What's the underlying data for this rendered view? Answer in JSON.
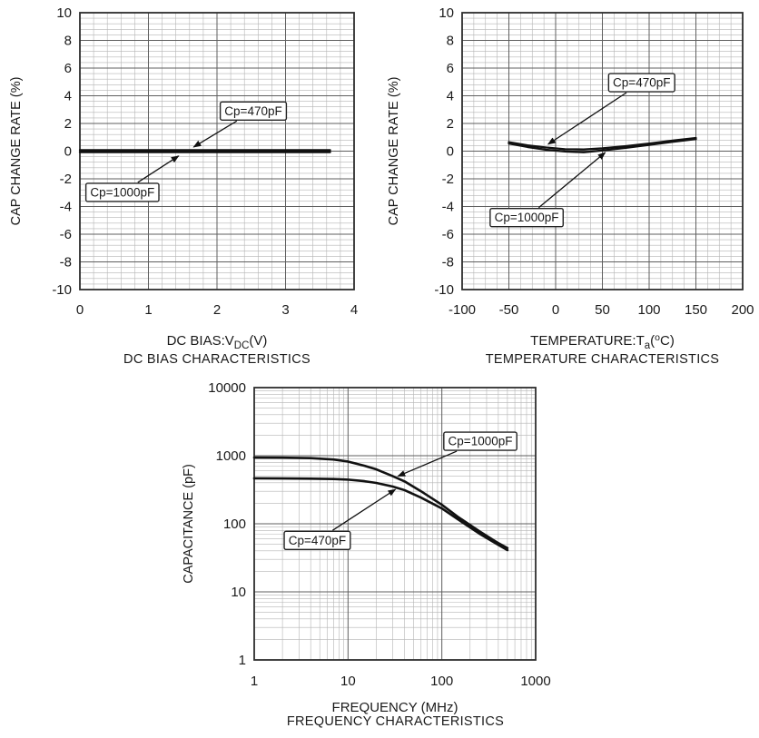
{
  "page": {
    "background": "#ffffff",
    "text_color": "#1a1a1a"
  },
  "styles": {
    "grid_minor": "#b5b5b5",
    "grid_major": "#5f5f5f",
    "plot_border": "#2e2e2e",
    "curve_color": "#111111",
    "annotation_fill": "#ffffff",
    "annotation_border": "#222222"
  },
  "chart_data": [
    {
      "id": "dc-bias",
      "type": "line",
      "title": "DC BIAS CHARACTERISTICS",
      "ylabel": "CAP CHANGE RATE (%)",
      "xlabel_parts": [
        {
          "t": "DC BIAS:V"
        },
        {
          "t": "DC",
          "style": "sub"
        },
        {
          "t": "(V)"
        }
      ],
      "xscale": "linear",
      "yscale": "linear",
      "xlim": [
        0,
        4
      ],
      "ylim": [
        -10,
        10
      ],
      "grid": true,
      "xticks": {
        "values": [
          0,
          1,
          2,
          3,
          4
        ],
        "labels": [
          "0",
          "1",
          "2",
          "3",
          "4"
        ]
      },
      "yticks": {
        "values": [
          10,
          8,
          6,
          4,
          2,
          0,
          -2,
          -4,
          -6,
          -8,
          -10
        ],
        "labels": [
          "10",
          "8",
          "6",
          "4",
          "2",
          "0",
          "-2",
          "-4",
          "-6",
          "-8",
          "-10"
        ]
      },
      "x_minor_step": 0.2,
      "y_minor_step": 0.4,
      "series": [
        {
          "name": "Cp=470pF",
          "points": [
            [
              0,
              0.07
            ],
            [
              3.65,
              0.07
            ]
          ]
        },
        {
          "name": "Cp=1000pF",
          "points": [
            [
              0,
              -0.07
            ],
            [
              3.65,
              -0.07
            ]
          ]
        }
      ],
      "annotations": [
        {
          "label": "Cp=470pF",
          "box": [
            2.53,
            2.9
          ],
          "target": [
            1.66,
            0.3
          ]
        },
        {
          "label": "Cp=1000pF",
          "box": [
            0.62,
            -2.98
          ],
          "target": [
            1.44,
            -0.35
          ]
        }
      ]
    },
    {
      "id": "temperature",
      "type": "line",
      "title": "TEMPERATURE CHARACTERISTICS",
      "ylabel": "CAP CHANGE RATE (%)",
      "xlabel_parts": [
        {
          "t": "TEMPERATURE:T"
        },
        {
          "t": "a",
          "style": "sub"
        },
        {
          "t": "("
        },
        {
          "t": "o",
          "style": "sup"
        },
        {
          "t": "C)"
        }
      ],
      "xscale": "linear",
      "yscale": "linear",
      "xlim": [
        -100,
        200
      ],
      "ylim": [
        -10,
        10
      ],
      "grid": true,
      "xticks": {
        "values": [
          -100,
          -50,
          0,
          50,
          100,
          150,
          200
        ],
        "labels": [
          "-100",
          "-50",
          "0",
          "50",
          "100",
          "150",
          "200"
        ]
      },
      "yticks": {
        "values": [
          10,
          8,
          6,
          4,
          2,
          0,
          -2,
          -4,
          -6,
          -8,
          -10
        ],
        "labels": [
          "10",
          "8",
          "6",
          "4",
          "2",
          "0",
          "-2",
          "-4",
          "-6",
          "-8",
          "-10"
        ]
      },
      "x_minor_step": 12.5,
      "y_minor_step": 0.4,
      "series": [
        {
          "name": "Cp=470pF",
          "points": [
            [
              -50,
              0.65
            ],
            [
              -30,
              0.42
            ],
            [
              -10,
              0.26
            ],
            [
              10,
              0.14
            ],
            [
              30,
              0.12
            ],
            [
              50,
              0.2
            ],
            [
              75,
              0.36
            ],
            [
              100,
              0.55
            ],
            [
              125,
              0.76
            ],
            [
              150,
              0.95
            ]
          ]
        },
        {
          "name": "Cp=1000pF",
          "points": [
            [
              -50,
              0.55
            ],
            [
              -30,
              0.3
            ],
            [
              -10,
              0.1
            ],
            [
              10,
              -0.02
            ],
            [
              30,
              -0.08
            ],
            [
              50,
              0.05
            ],
            [
              75,
              0.24
            ],
            [
              100,
              0.45
            ],
            [
              125,
              0.67
            ],
            [
              150,
              0.87
            ]
          ]
        }
      ],
      "annotations": [
        {
          "label": "Cp=470pF",
          "box": [
            92,
            4.95
          ],
          "target": [
            -8,
            0.5
          ]
        },
        {
          "label": "Cp=1000pF",
          "box": [
            -31,
            -4.8
          ],
          "target": [
            53,
            -0.1
          ]
        }
      ]
    },
    {
      "id": "frequency",
      "type": "line",
      "title": "FREQUENCY CHARACTERISTICS",
      "ylabel": "CAPACITANCE (pF)",
      "xlabel_parts": [
        {
          "t": "FREQUENCY (MHz)"
        }
      ],
      "xscale": "log",
      "yscale": "log",
      "xlim": [
        1,
        1000
      ],
      "ylim": [
        1,
        10000
      ],
      "grid": true,
      "line_width": 2.6,
      "xticks": {
        "values": [
          1,
          10,
          100,
          1000
        ],
        "labels": [
          "1",
          "10",
          "100",
          "1000"
        ]
      },
      "yticks": {
        "values": [
          1,
          10,
          100,
          1000,
          10000
        ],
        "labels": [
          "1",
          "10",
          "100",
          "1000",
          "10000"
        ]
      },
      "series": [
        {
          "name": "Cp=1000pF",
          "points": [
            [
              1,
              940
            ],
            [
              2,
              935
            ],
            [
              4,
              920
            ],
            [
              7,
              880
            ],
            [
              10,
              820
            ],
            [
              15,
              710
            ],
            [
              20,
              630
            ],
            [
              30,
              500
            ],
            [
              40,
              420
            ],
            [
              60,
              300
            ],
            [
              100,
              190
            ],
            [
              150,
              125
            ],
            [
              250,
              78
            ],
            [
              400,
              52
            ],
            [
              500,
              44
            ]
          ]
        },
        {
          "name": "Cp=470pF",
          "points": [
            [
              1,
              465
            ],
            [
              2,
              463
            ],
            [
              4,
              460
            ],
            [
              7,
              455
            ],
            [
              10,
              445
            ],
            [
              15,
              422
            ],
            [
              20,
              398
            ],
            [
              30,
              352
            ],
            [
              40,
              312
            ],
            [
              60,
              242
            ],
            [
              100,
              168
            ],
            [
              150,
              115
            ],
            [
              250,
              72
            ],
            [
              400,
              49
            ],
            [
              500,
              41
            ]
          ]
        }
      ],
      "annotations": [
        {
          "label": "Cp=1000pF",
          "box": [
            257,
            1630
          ],
          "target": [
            34,
            500
          ]
        },
        {
          "label": "Cp=470pF",
          "box": [
            4.7,
            57
          ],
          "target": [
            32,
            320
          ]
        }
      ]
    }
  ]
}
